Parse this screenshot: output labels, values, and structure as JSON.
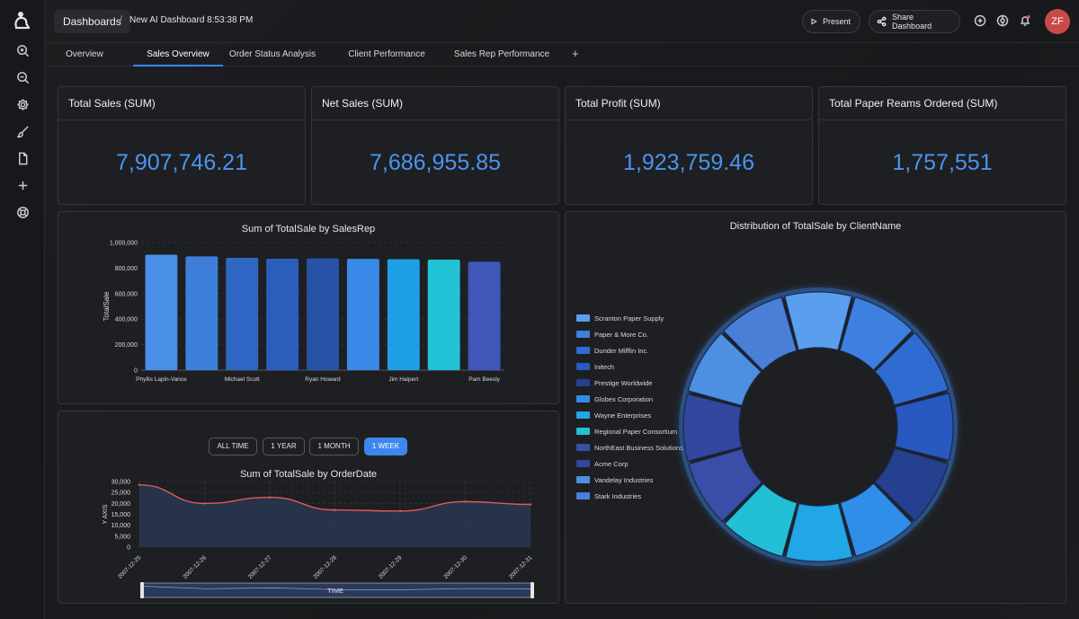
{
  "topbar": {
    "breadcrumb_root": "Dashboards",
    "separator": "/",
    "dashboard_title": "New AI Dashboard 8:53:38 PM",
    "present_label": "Present",
    "share_label": "Share Dashboard",
    "avatar_initials": "ZF"
  },
  "tabs": [
    {
      "label": "Overview"
    },
    {
      "label": "Sales Overview",
      "active": true
    },
    {
      "label": "Order Status Analysis"
    },
    {
      "label": "Client Performance"
    },
    {
      "label": "Sales Rep Performance"
    }
  ],
  "tab_add": "+",
  "kpis": [
    {
      "title": "Total Sales (SUM)",
      "value": "7,907,746.21"
    },
    {
      "title": "Net Sales (SUM)",
      "value": "7,686,955.85"
    },
    {
      "title": "Total Profit (SUM)",
      "value": "1,923,759.46"
    },
    {
      "title": "Total Paper Reams Ordered (SUM)",
      "value": "1,757,551"
    }
  ],
  "range_buttons": [
    {
      "label": "ALL TIME"
    },
    {
      "label": "1 YEAR"
    },
    {
      "label": "1 MONTH"
    },
    {
      "label": "1 WEEK",
      "active": true
    }
  ],
  "colors": {
    "accent": "#3d86ee",
    "kpi_value": "#4a94f0",
    "line": "#e05a5a",
    "area": "#2b3a5a"
  },
  "chart_data": [
    {
      "type": "bar",
      "title": "Sum of TotalSale by SalesRep",
      "ylabel": "TotalSale",
      "xlabel": "",
      "ylim": [
        0,
        1000000
      ],
      "yticks": [
        0,
        200000,
        400000,
        600000,
        800000,
        1000000
      ],
      "ytick_labels": [
        "0",
        "200,000",
        "400,000",
        "600,000",
        "800,000",
        "1,000,000"
      ],
      "categories": [
        "Phyllis Lapin-Vance",
        "",
        "Michael Scott",
        "",
        "Ryan Howard",
        "",
        "Jim Halpert",
        "",
        "Pam Beesly"
      ],
      "values": [
        905000,
        892000,
        880000,
        873000,
        876000,
        872000,
        870000,
        866000,
        850000
      ],
      "bar_colors": [
        "#4a8fe6",
        "#3d7ed9",
        "#2f67c4",
        "#2a5eba",
        "#2653a6",
        "#3889e8",
        "#1fa0e6",
        "#22c3d6",
        "#3f57b8"
      ]
    },
    {
      "type": "pie",
      "title": "Distribution of TotalSale by ClientName",
      "labels": [
        "Scranton Paper Supply",
        "Paper & More Co.",
        "Dunder Mifflin Inc.",
        "Initech",
        "Prestige Worldwide",
        "Globex Corporation",
        "Wayne Enterprises",
        "Regional Paper Consortium",
        "NorthEast Business Solutions",
        "Acme Corp",
        "Vandelay Industries",
        "Stark Industries"
      ],
      "values": [
        8.4,
        8.3,
        8.3,
        8.4,
        8.3,
        8.2,
        8.4,
        8.3,
        8.3,
        8.4,
        8.3,
        8.4
      ],
      "colors": [
        "#5a9ef0",
        "#3d80e0",
        "#2f6cd2",
        "#2858c0",
        "#24408f",
        "#2f8ee8",
        "#21a6e6",
        "#22c0d4",
        "#3a4ea8",
        "#3346a0",
        "#4d8fe0",
        "#4a7fd8"
      ]
    },
    {
      "type": "line",
      "title": "Sum of TotalSale by OrderDate",
      "ylabel": "Y AXIS",
      "xlabel": "TIME",
      "ylim": [
        0,
        30000
      ],
      "yticks": [
        0,
        5000,
        10000,
        15000,
        20000,
        25000,
        30000
      ],
      "ytick_labels": [
        "0",
        "5,000",
        "10,000",
        "15,000",
        "20,000",
        "25,000",
        "30,000"
      ],
      "x": [
        "2007-12-25",
        "2007-12-26",
        "2007-12-27",
        "2007-12-28",
        "2007-12-29",
        "2007-12-30",
        "2007-12-31"
      ],
      "values": [
        28500,
        20000,
        22800,
        17000,
        16500,
        20800,
        19500
      ]
    }
  ]
}
